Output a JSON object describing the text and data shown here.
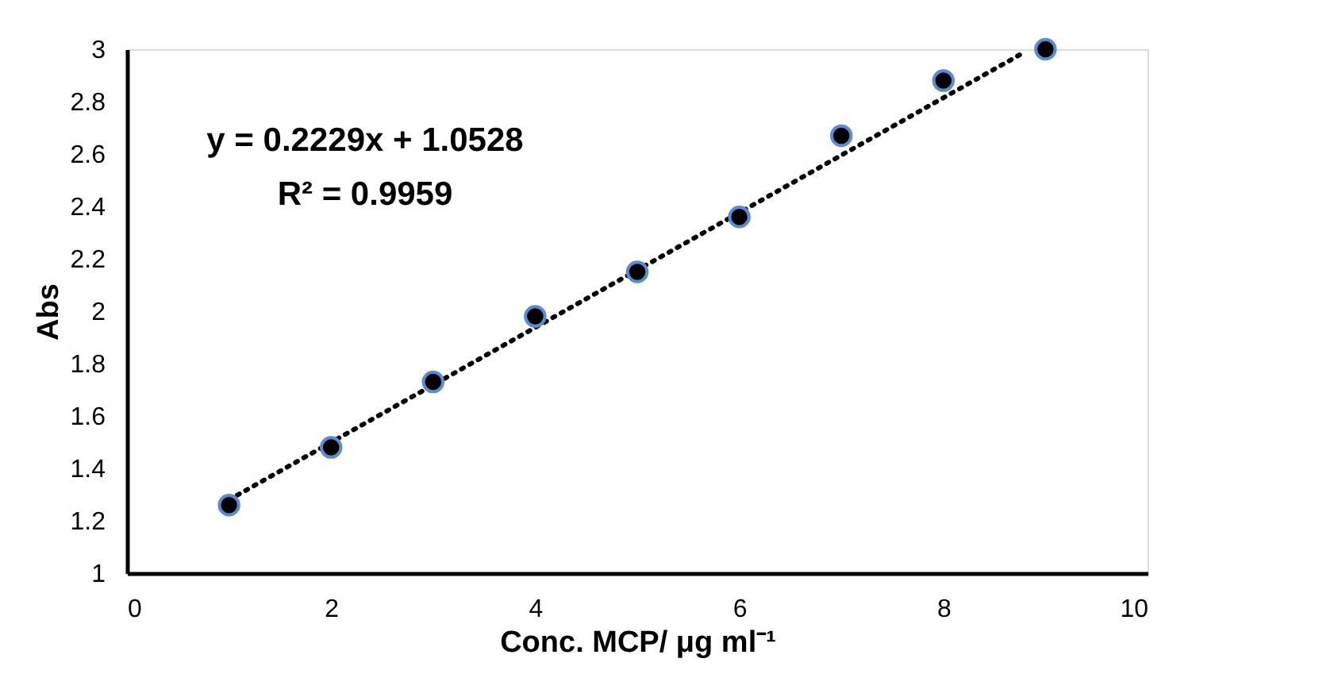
{
  "chart_data": {
    "type": "scatter",
    "xlabel": "Conc. MCP/ μg ml⁻¹",
    "ylabel": "Abs",
    "annotations": [
      "y = 0.2229x + 1.0528",
      "R² = 0.9959"
    ],
    "x": [
      1,
      2,
      3,
      4,
      5,
      6,
      7,
      8,
      9
    ],
    "series": [
      {
        "color": "#000000",
        "values": [
          1.26,
          1.48,
          1.73,
          1.98,
          2.15,
          2.36,
          2.67,
          2.88,
          3.0
        ],
        "marker": "circle"
      },
      {
        "type": "line",
        "color": "#000000",
        "x": [
          1,
          8.8
        ],
        "values": [
          1.28,
          2.99
        ],
        "line_style": "dotted",
        "marker": "none"
      }
    ],
    "xlim": [
      0,
      10
    ],
    "xticks": [
      0,
      2,
      4,
      6,
      8,
      10
    ],
    "ylim": [
      1,
      3
    ],
    "yticks": [
      1,
      1.2,
      1.4,
      1.6,
      1.8,
      2,
      2.2,
      2.4,
      2.6,
      2.8,
      3
    ],
    "grid": false
  }
}
